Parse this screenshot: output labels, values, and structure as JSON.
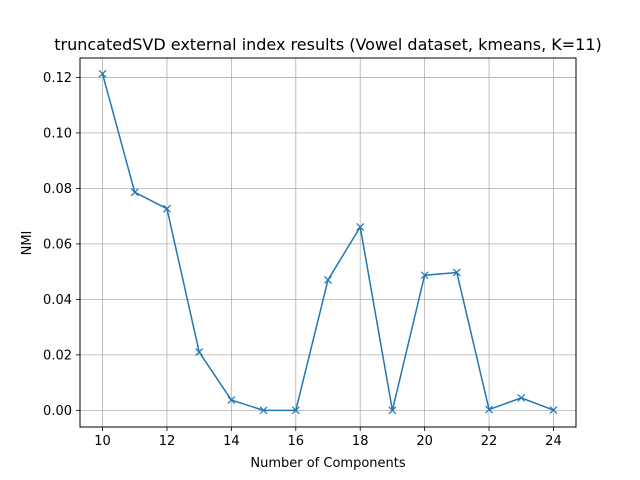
{
  "chart_data": {
    "type": "line",
    "title": "truncatedSVD external index results (Vowel dataset, kmeans, K=11)",
    "xlabel": "Number of Components",
    "ylabel": "NMI",
    "xlim": [
      9.3,
      24.7
    ],
    "ylim": [
      -0.006,
      0.127
    ],
    "xticks": [
      10,
      12,
      14,
      16,
      18,
      20,
      22,
      24
    ],
    "yticks": [
      0.0,
      0.02,
      0.04,
      0.06,
      0.08,
      0.1,
      0.12
    ],
    "ytick_labels": [
      "0.00",
      "0.02",
      "0.04",
      "0.06",
      "0.08",
      "0.10",
      "0.12"
    ],
    "grid": true,
    "marker": "x",
    "color": "#1f77b4",
    "series": [
      {
        "x": [
          10,
          11,
          12,
          13,
          14,
          15,
          16,
          17,
          18,
          19,
          20,
          21,
          22,
          23,
          24
        ],
        "values": [
          0.1213,
          0.0786,
          0.0727,
          0.021,
          0.0037,
          0.0,
          0.0,
          0.047,
          0.0661,
          0.0,
          0.0487,
          0.0497,
          0.0003,
          0.0045,
          0.0001
        ]
      }
    ]
  }
}
